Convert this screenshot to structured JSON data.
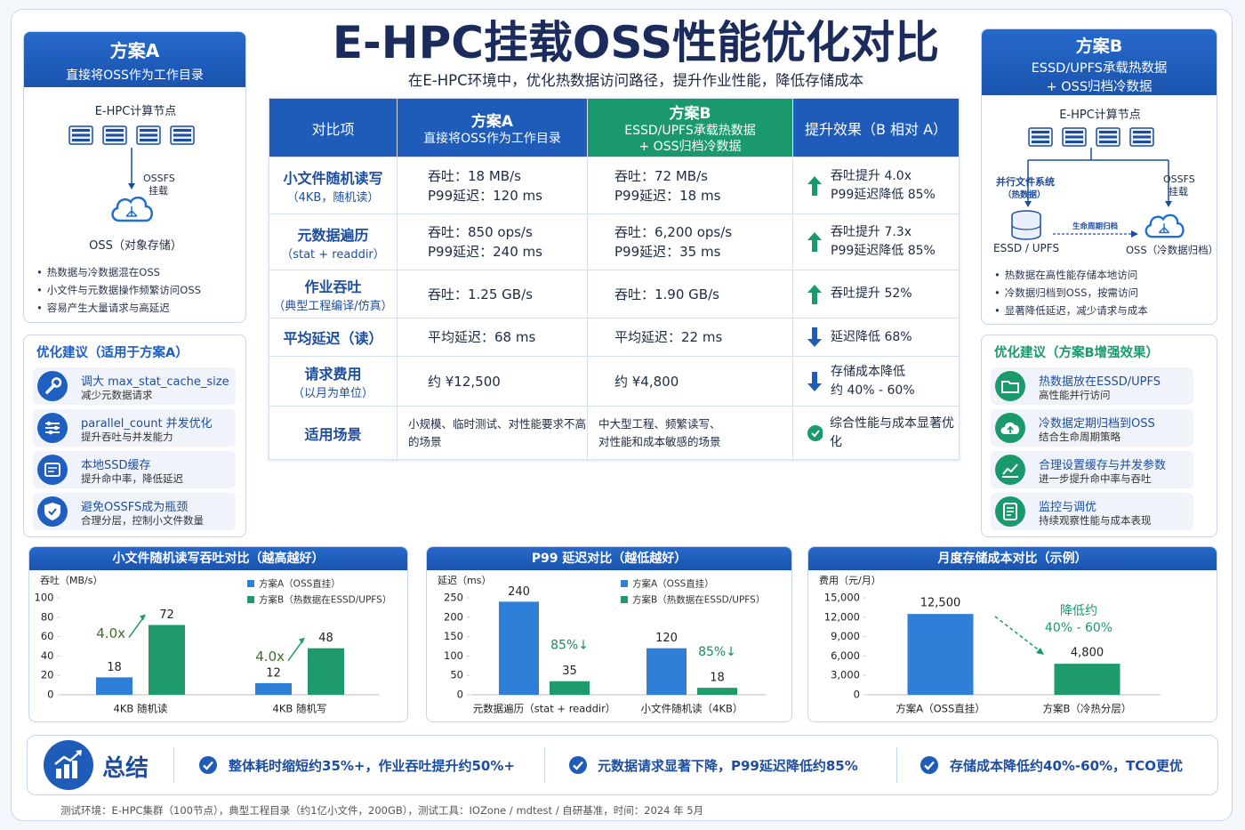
{
  "header": {
    "title": "E-HPC挂载OSS性能优化对比",
    "subtitle": "在E-HPC环境中，优化热数据访问路径，提升作业性能，降低存储成本"
  },
  "plan_a": {
    "title": "方案A",
    "subtitle": "直接将OSS作为工作目录",
    "node_label": "E-HPC计算节点",
    "mount_label": [
      "OSSFS",
      "挂载"
    ],
    "storage_label": "OSS（对象存储）",
    "points": [
      "热数据与冷数据混在OSS",
      "小文件与元数据操作频繁访问OSS",
      "容易产生大量请求与高延迟"
    ]
  },
  "plan_a_tips": {
    "title": "优化建议（适用于方案A）",
    "items": [
      {
        "title": "调大 max_stat_cache_size",
        "desc": "减少元数据请求"
      },
      {
        "title": "parallel_count 并发优化",
        "desc": "提升吞吐与并发能力"
      },
      {
        "title": "本地SSD缓存",
        "desc": "提升命中率，降低延迟"
      },
      {
        "title": "避免OSSFS成为瓶颈",
        "desc": "合理分层，控制小文件数量"
      }
    ]
  },
  "plan_b": {
    "title": "方案B",
    "subtitle": [
      "ESSD/UPFS承载热数据",
      "+ OSS归档冷数据"
    ],
    "node_label": "E-HPC计算节点",
    "hot_label": [
      "并行文件系统",
      "（热数据）"
    ],
    "mount_label": [
      "OSSFS",
      "挂载"
    ],
    "flow_label": "生命周期归档",
    "hot_storage": "ESSD / UPFS",
    "cold_storage": "OSS（冷数据归档）",
    "points": [
      "热数据在高性能存储本地访问",
      "冷数据归档到OSS，按需访问",
      "显著降低延迟，减少请求与成本"
    ]
  },
  "plan_b_tips": {
    "title": "优化建议（方案B增强效果）",
    "items": [
      {
        "title": "热数据放在ESSD/UPFS",
        "desc": "高性能并行访问"
      },
      {
        "title": "冷数据定期归档到OSS",
        "desc": "结合生命周期策略"
      },
      {
        "title": "合理设置缓存与并发参数",
        "desc": "进一步提升命中率与吞吐"
      },
      {
        "title": "监控与调优",
        "desc": "持续观察性能与成本表现"
      }
    ]
  },
  "table": {
    "header": [
      [
        "对比项"
      ],
      [
        "方案A",
        "直接将OSS作为工作目录"
      ],
      [
        "方案B",
        "ESSD/UPFS承载热数据",
        "+ OSS归档冷数据"
      ],
      [
        "提升效果（B 相对 A）"
      ]
    ],
    "rows": [
      [
        [
          "小文件随机读写",
          "（4KB，随机读）"
        ],
        [
          "吞吐：18 MB/s",
          "P99延迟：120 ms"
        ],
        [
          "吞吐：72 MB/s",
          "P99延迟：18 ms"
        ],
        [
          "吞吐提升 4.0x",
          "P99延迟降低 85%"
        ]
      ],
      [
        [
          "元数据遍历",
          "（stat + readdir）"
        ],
        [
          "吞吐：850 ops/s",
          "P99延迟：240 ms"
        ],
        [
          "吞吐：6,200 ops/s",
          "P99延迟：35 ms"
        ],
        [
          "吞吐提升 7.3x",
          "P99延迟降低 85%"
        ]
      ],
      [
        [
          "作业吞吐",
          "（典型工程编译/仿真）"
        ],
        [
          "吞吐：1.25 GB/s"
        ],
        [
          "吞吐：1.90 GB/s"
        ],
        [
          "吞吐提升 52%"
        ]
      ],
      [
        [
          "平均延迟（读）"
        ],
        [
          "平均延迟：68 ms"
        ],
        [
          "平均延迟：22 ms"
        ],
        [
          "延迟降低 68%"
        ]
      ],
      [
        [
          "请求费用",
          "（以月为单位）"
        ],
        [
          "约 ¥12,500"
        ],
        [
          "约 ¥4,800"
        ],
        [
          "存储成本降低",
          "约 40% - 60%"
        ]
      ],
      [
        [
          "适用场景"
        ],
        [
          "小规模、临时测试、对性能要求不高",
          "的场景"
        ],
        [
          "中大型工程、频繁读写、",
          "对性能和成本敏感的场景"
        ],
        [
          "综合性能与成本显著优化"
        ]
      ]
    ]
  },
  "chart_data": [
    {
      "type": "bar",
      "title": "小文件随机读写吞吐对比（越高越好）",
      "y_label": "吞吐（MB/s）",
      "categories": [
        "4KB 随机读",
        "4KB 随机写"
      ],
      "series": [
        {
          "name": "方案A（OSS直挂）",
          "color": "#2f7fd8",
          "values": [
            18,
            12
          ]
        },
        {
          "name": "方案B（热数据在ESSD/UPFS）",
          "color": "#1f9a6a",
          "values": [
            72,
            48
          ]
        }
      ],
      "annotations": [
        "4.0x",
        "4.0x"
      ],
      "ylim": [
        0,
        100
      ],
      "yticks": [
        0,
        20,
        40,
        60,
        80,
        100
      ]
    },
    {
      "type": "bar",
      "title": "P99 延迟对比（越低越好）",
      "y_label": "延迟（ms）",
      "categories": [
        "元数据遍历（stat + readdir）",
        "小文件随机读（4KB）"
      ],
      "series": [
        {
          "name": "方案A（OSS直挂）",
          "color": "#2f7fd8",
          "values": [
            240,
            120
          ]
        },
        {
          "name": "方案B（热数据在ESSD/UPFS）",
          "color": "#1f9a6a",
          "values": [
            35,
            18
          ]
        }
      ],
      "annotations": [
        "85%↓",
        "85%↓"
      ],
      "ylim": [
        0,
        250
      ],
      "yticks": [
        0,
        50,
        100,
        150,
        200,
        250
      ]
    },
    {
      "type": "bar",
      "title": "月度存储成本对比（示例）",
      "y_label": "费用（元/月）",
      "categories": [
        "方案A（OSS直挂）",
        "方案B（冷热分层）"
      ],
      "values": [
        12500,
        4800
      ],
      "value_labels": [
        "12,500",
        "4,800"
      ],
      "colors": [
        "#2f7fd8",
        "#1f9a6a"
      ],
      "annotation": [
        "降低约",
        "40% - 60%"
      ],
      "ylim": [
        0,
        15000
      ],
      "yticks": [
        0,
        {
          "value": 3000,
          "label": "3,000"
        },
        {
          "value": 6000,
          "label": "6,000"
        },
        {
          "value": 9000,
          "label": "9,000"
        },
        {
          "value": 12000,
          "label": "12,000"
        },
        {
          "value": 15000,
          "label": "15,000"
        }
      ]
    }
  ],
  "summary": {
    "title": "总结",
    "items": [
      "整体耗时缩短约35%+，作业吞吐提升约50%+",
      "元数据请求显著下降，P99延迟降低约85%",
      "存储成本降低约40%-60%，TCO更优"
    ]
  },
  "footer": "测试环境：E-HPC集群（100节点），典型工程目录（约1亿小文件，200GB），测试工具：IOZone / mdtest / 自研基准，时间：2024 年 5月"
}
